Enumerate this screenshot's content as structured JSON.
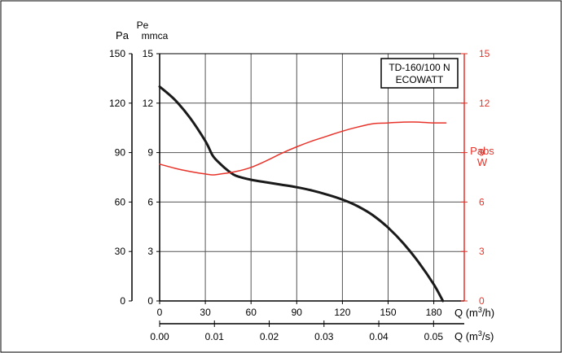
{
  "chart_data": {
    "type": "line",
    "labels": {
      "pa_axis": "Pa",
      "pe_axis_top": "Pe",
      "pe_axis_bottom": "mmca",
      "pabs_axis_top": "Pabs",
      "pabs_axis_bottom": "W",
      "q_m3h_prefix": "Q (m",
      "q_m3h_sup": "3",
      "q_m3h_suffix": "/h)",
      "q_m3s_prefix": "Q (m",
      "q_m3s_sup": "3",
      "q_m3s_suffix": "/s)",
      "legend_line1": "TD-160/100 N",
      "legend_line2": "ECOWATT"
    },
    "x_m3h": {
      "range": [
        0,
        200
      ],
      "ticks": [
        0,
        30,
        60,
        90,
        120,
        150,
        180
      ],
      "tick_labels": [
        "0",
        "30",
        "60",
        "90",
        "120",
        "150",
        "180"
      ]
    },
    "x_m3s": {
      "range": [
        0,
        0.0556
      ],
      "ticks": [
        0.0,
        0.01,
        0.02,
        0.03,
        0.04,
        0.05
      ],
      "tick_labels": [
        "0.00",
        "0.01",
        "0.02",
        "0.03",
        "0.04",
        "0.05"
      ]
    },
    "y_pa": {
      "range": [
        0,
        150
      ],
      "ticks": [
        0,
        30,
        60,
        90,
        120,
        150
      ],
      "tick_labels": [
        "0",
        "30",
        "60",
        "90",
        "120",
        "150"
      ]
    },
    "y_mmca": {
      "range": [
        0,
        15
      ],
      "ticks": [
        0,
        3,
        6,
        9,
        12,
        15
      ],
      "tick_labels": [
        "0",
        "3",
        "6",
        "9",
        "12",
        "15"
      ]
    },
    "y_w": {
      "range": [
        0,
        15
      ],
      "ticks": [
        0,
        3,
        6,
        9,
        12,
        15
      ],
      "tick_labels": [
        "0",
        "3",
        "6",
        "9",
        "12",
        "15"
      ]
    },
    "grid": true,
    "series": [
      {
        "axis": "pa",
        "color": "#1a1a1a",
        "x": [
          0,
          10,
          20,
          30,
          35,
          40,
          45,
          50,
          60,
          70,
          80,
          90,
          100,
          110,
          120,
          130,
          140,
          150,
          160,
          170,
          180,
          186
        ],
        "y": [
          130,
          122,
          111,
          97,
          88,
          83,
          79,
          76,
          73.5,
          72,
          70.5,
          69,
          67,
          64.5,
          61.5,
          57.5,
          52,
          44.5,
          35,
          23.5,
          10,
          0
        ]
      },
      {
        "axis": "w",
        "color": "#e8332a",
        "x": [
          0,
          10,
          20,
          30,
          35,
          40,
          50,
          60,
          70,
          80,
          90,
          100,
          110,
          120,
          130,
          140,
          150,
          160,
          170,
          180,
          188
        ],
        "y": [
          8.3,
          8.05,
          7.85,
          7.7,
          7.65,
          7.7,
          7.85,
          8.1,
          8.5,
          8.95,
          9.35,
          9.7,
          10.0,
          10.3,
          10.55,
          10.75,
          10.8,
          10.85,
          10.85,
          10.8,
          10.8
        ]
      }
    ]
  }
}
